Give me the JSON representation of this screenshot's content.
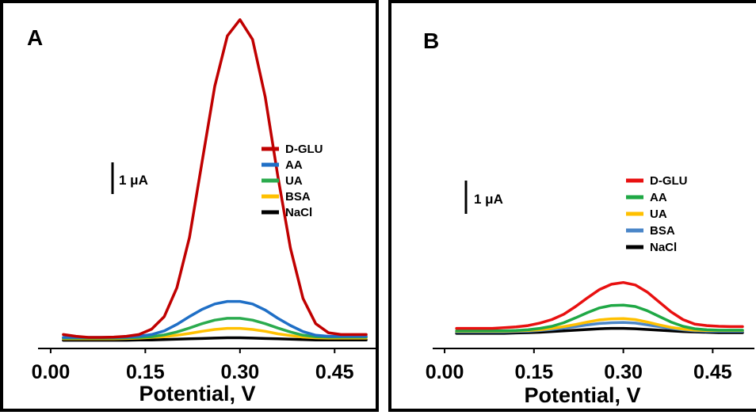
{
  "chart_data": [
    {
      "panel": "A",
      "type": "line",
      "xlabel": "Potential, V",
      "xticks": [
        "0.00",
        "0.15",
        "0.30",
        "0.45"
      ],
      "xlim": [
        -0.02,
        0.52
      ],
      "ylim": [
        -0.2,
        9.0
      ],
      "scale_bar": "1 μA",
      "legend_position": "middle-right",
      "x": [
        0.02,
        0.04,
        0.06,
        0.08,
        0.1,
        0.12,
        0.14,
        0.16,
        0.18,
        0.2,
        0.22,
        0.24,
        0.26,
        0.28,
        0.3,
        0.32,
        0.34,
        0.36,
        0.38,
        0.4,
        0.42,
        0.44,
        0.46,
        0.48,
        0.5
      ],
      "series": [
        {
          "name": "D-GLU",
          "color": "#c00000",
          "values": [
            0.1,
            0.05,
            0.02,
            0.02,
            0.03,
            0.05,
            0.1,
            0.25,
            0.6,
            1.4,
            2.8,
            4.9,
            7.0,
            8.4,
            8.85,
            8.3,
            6.7,
            4.5,
            2.5,
            1.1,
            0.4,
            0.15,
            0.1,
            0.1,
            0.1
          ]
        },
        {
          "name": "AA",
          "color": "#1f6fc6",
          "values": [
            0.02,
            0.02,
            0.02,
            0.02,
            0.02,
            0.03,
            0.05,
            0.1,
            0.2,
            0.38,
            0.6,
            0.8,
            0.95,
            1.02,
            1.02,
            0.95,
            0.78,
            0.55,
            0.35,
            0.18,
            0.08,
            0.05,
            0.05,
            0.05,
            0.05
          ]
        },
        {
          "name": "UA",
          "color": "#2bab4e",
          "values": [
            0.0,
            0.0,
            0.0,
            0.0,
            0.0,
            0.01,
            0.02,
            0.04,
            0.09,
            0.17,
            0.28,
            0.4,
            0.5,
            0.55,
            0.55,
            0.5,
            0.4,
            0.28,
            0.17,
            0.08,
            0.04,
            0.03,
            0.03,
            0.03,
            0.03
          ]
        },
        {
          "name": "BSA",
          "color": "#ffc000",
          "values": [
            -0.02,
            -0.02,
            -0.02,
            -0.02,
            -0.02,
            -0.01,
            0.0,
            0.02,
            0.04,
            0.08,
            0.13,
            0.19,
            0.24,
            0.27,
            0.27,
            0.24,
            0.19,
            0.12,
            0.07,
            0.03,
            0.01,
            0.0,
            0.0,
            0.0,
            0.0
          ]
        },
        {
          "name": "NaCl",
          "color": "#000000",
          "values": [
            -0.06,
            -0.06,
            -0.06,
            -0.06,
            -0.06,
            -0.06,
            -0.05,
            -0.05,
            -0.04,
            -0.03,
            -0.02,
            -0.01,
            0.0,
            0.01,
            0.01,
            0.0,
            -0.01,
            -0.02,
            -0.03,
            -0.04,
            -0.05,
            -0.05,
            -0.05,
            -0.05,
            -0.05
          ]
        }
      ]
    },
    {
      "panel": "B",
      "type": "line",
      "xlabel": "Potential, V",
      "xticks": [
        "0.00",
        "0.15",
        "0.30",
        "0.45"
      ],
      "xlim": [
        -0.02,
        0.52
      ],
      "ylim": [
        -0.2,
        9.0
      ],
      "scale_bar": "1 μA",
      "legend_position": "middle-right",
      "x": [
        0.02,
        0.04,
        0.06,
        0.08,
        0.1,
        0.12,
        0.14,
        0.16,
        0.18,
        0.2,
        0.22,
        0.24,
        0.26,
        0.28,
        0.3,
        0.32,
        0.34,
        0.36,
        0.38,
        0.4,
        0.42,
        0.44,
        0.46,
        0.48,
        0.5
      ],
      "series": [
        {
          "name": "D-GLU",
          "color": "#e81010",
          "values": [
            0.1,
            0.1,
            0.1,
            0.1,
            0.12,
            0.14,
            0.18,
            0.25,
            0.35,
            0.5,
            0.72,
            0.97,
            1.2,
            1.35,
            1.4,
            1.33,
            1.13,
            0.85,
            0.57,
            0.35,
            0.22,
            0.18,
            0.16,
            0.15,
            0.15
          ]
        },
        {
          "name": "AA",
          "color": "#1fa845",
          "values": [
            0.03,
            0.03,
            0.03,
            0.03,
            0.03,
            0.04,
            0.06,
            0.1,
            0.16,
            0.26,
            0.4,
            0.55,
            0.68,
            0.75,
            0.76,
            0.72,
            0.6,
            0.44,
            0.28,
            0.16,
            0.09,
            0.06,
            0.05,
            0.05,
            0.05
          ]
        },
        {
          "name": "UA",
          "color": "#ffc000",
          "values": [
            0.02,
            0.02,
            0.02,
            0.02,
            0.02,
            0.03,
            0.04,
            0.06,
            0.1,
            0.15,
            0.21,
            0.28,
            0.34,
            0.37,
            0.38,
            0.35,
            0.28,
            0.2,
            0.13,
            0.08,
            0.05,
            0.04,
            0.04,
            0.04,
            0.04
          ]
        },
        {
          "name": "BSA",
          "color": "#4a86c8",
          "values": [
            0.0,
            0.0,
            0.0,
            0.0,
            0.0,
            0.01,
            0.02,
            0.04,
            0.07,
            0.11,
            0.15,
            0.2,
            0.24,
            0.26,
            0.27,
            0.25,
            0.2,
            0.15,
            0.1,
            0.06,
            0.03,
            0.02,
            0.02,
            0.02,
            0.02
          ]
        },
        {
          "name": "NaCl",
          "color": "#000000",
          "values": [
            -0.04,
            -0.04,
            -0.04,
            -0.04,
            -0.04,
            -0.03,
            -0.02,
            -0.01,
            0.01,
            0.03,
            0.05,
            0.07,
            0.09,
            0.1,
            0.1,
            0.09,
            0.07,
            0.05,
            0.03,
            0.01,
            0.0,
            -0.01,
            -0.02,
            -0.02,
            -0.02
          ]
        }
      ]
    }
  ]
}
